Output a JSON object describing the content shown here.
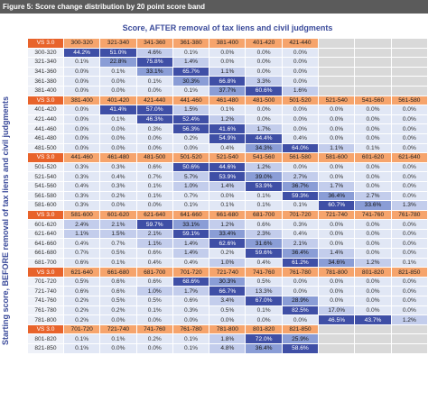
{
  "title": "Figure 5: Score change distribution by 20 point score band",
  "column_heading": "Score, AFTER removal of tax liens and civil judgments",
  "row_heading": "Starting score, BEFORE removal of tax liens and civil judgments",
  "blocks": [
    {
      "header": [
        "VS 3.0",
        "300-320",
        "321-340",
        "341-360",
        "361-380",
        "381-400",
        "401-420",
        "421-440"
      ],
      "rows": [
        {
          "label": "300-320",
          "values": [
            "44.2%",
            "51.0%",
            "4.6%",
            "0.1%",
            "0.0%",
            "0.0%",
            "0.0%"
          ]
        },
        {
          "label": "321-340",
          "values": [
            "0.1%",
            "22.8%",
            "75.8%",
            "1.4%",
            "0.0%",
            "0.0%",
            "0.0%"
          ]
        },
        {
          "label": "341-360",
          "values": [
            "0.0%",
            "0.1%",
            "33.1%",
            "65.7%",
            "1.1%",
            "0.0%",
            "0.0%"
          ]
        },
        {
          "label": "361-380",
          "values": [
            "0.0%",
            "0.0%",
            "0.1%",
            "30.3%",
            "66.8%",
            "3.3%",
            "0.0%"
          ]
        },
        {
          "label": "381-400",
          "values": [
            "0.0%",
            "0.0%",
            "0.0%",
            "0.1%",
            "37.7%",
            "60.6%",
            "1.6%"
          ]
        }
      ]
    },
    {
      "header": [
        "VS 3.0",
        "381-400",
        "401-420",
        "421-440",
        "441-460",
        "461-480",
        "481-500",
        "501-520",
        "521-540",
        "541-560",
        "561-580"
      ],
      "rows": [
        {
          "label": "401-420",
          "values": [
            "0.0%",
            "41.4%",
            "57.0%",
            "1.5%",
            "0.1%",
            "0.0%",
            "0.0%",
            "0.0%",
            "0.0%",
            "0.0%"
          ]
        },
        {
          "label": "421-440",
          "values": [
            "0.0%",
            "0.1%",
            "46.3%",
            "52.4%",
            "1.2%",
            "0.0%",
            "0.0%",
            "0.0%",
            "0.0%",
            "0.0%"
          ]
        },
        {
          "label": "441-460",
          "values": [
            "0.0%",
            "0.0%",
            "0.3%",
            "56.3%",
            "41.6%",
            "1.7%",
            "0.0%",
            "0.0%",
            "0.0%",
            "0.0%"
          ]
        },
        {
          "label": "461-480",
          "values": [
            "0.0%",
            "0.0%",
            "0.0%",
            "0.2%",
            "54.9%",
            "44.4%",
            "0.4%",
            "0.0%",
            "0.0%",
            "0.0%"
          ]
        },
        {
          "label": "481-500",
          "values": [
            "0.0%",
            "0.0%",
            "0.0%",
            "0.0%",
            "0.4%",
            "34.3%",
            "64.0%",
            "1.1%",
            "0.1%",
            "0.0%"
          ]
        }
      ]
    },
    {
      "header": [
        "VS 3.0",
        "441-460",
        "461-480",
        "481-500",
        "501-520",
        "521-540",
        "541-560",
        "561-580",
        "581-600",
        "601-620",
        "621-640"
      ],
      "rows": [
        {
          "label": "501-520",
          "values": [
            "0.3%",
            "0.3%",
            "0.6%",
            "50.6%",
            "44.6%",
            "1.2%",
            "0.0%",
            "0.0%",
            "0.0%",
            "0.0%"
          ]
        },
        {
          "label": "521-540",
          "values": [
            "0.3%",
            "0.4%",
            "0.7%",
            "5.7%",
            "53.9%",
            "39.0%",
            "2.7%",
            "0.0%",
            "0.0%",
            "0.0%"
          ]
        },
        {
          "label": "541-560",
          "values": [
            "0.4%",
            "0.3%",
            "0.1%",
            "1.0%",
            "1.4%",
            "53.9%",
            "36.7%",
            "1.7%",
            "0.0%",
            "0.0%"
          ]
        },
        {
          "label": "561-580",
          "values": [
            "0.3%",
            "0.2%",
            "0.1%",
            "0.7%",
            "0.0%",
            "0.1%",
            "59.3%",
            "36.4%",
            "2.7%",
            "0.0%"
          ]
        },
        {
          "label": "581-600",
          "values": [
            "0.3%",
            "0.0%",
            "0.0%",
            "0.1%",
            "0.1%",
            "0.1%",
            "0.1%",
            "60.7%",
            "33.6%",
            "1.3%"
          ]
        }
      ]
    },
    {
      "header": [
        "VS 3.0",
        "581-600",
        "601-620",
        "621-640",
        "641-660",
        "661-680",
        "681-700",
        "701-720",
        "721-740",
        "741-760",
        "761-780"
      ],
      "rows": [
        {
          "label": "601-620",
          "values": [
            "2.4%",
            "2.1%",
            "59.7%",
            "33.1%",
            "1.2%",
            "0.6%",
            "0.3%",
            "0.0%",
            "0.0%",
            "0.0%"
          ]
        },
        {
          "label": "621-640",
          "values": [
            "1.1%",
            "1.5%",
            "2.1%",
            "59.1%",
            "33.4%",
            "2.3%",
            "0.4%",
            "0.0%",
            "0.0%",
            "0.0%"
          ]
        },
        {
          "label": "641-660",
          "values": [
            "0.4%",
            "0.7%",
            "1.1%",
            "1.4%",
            "62.6%",
            "31.6%",
            "2.1%",
            "0.0%",
            "0.0%",
            "0.0%"
          ]
        },
        {
          "label": "661-680",
          "values": [
            "0.7%",
            "0.5%",
            "0.6%",
            "1.4%",
            "0.2%",
            "59.6%",
            "36.4%",
            "1.4%",
            "0.0%",
            "0.0%"
          ]
        },
        {
          "label": "681-700",
          "values": [
            "0.6%",
            "0.1%",
            "0.4%",
            "0.4%",
            "1.0%",
            "0.4%",
            "61.2%",
            "34.6%",
            "1.2%",
            "0.1%"
          ]
        }
      ]
    },
    {
      "header": [
        "VS 3.0",
        "621-640",
        "661-680",
        "681-700",
        "701-720",
        "721-740",
        "741-760",
        "761-780",
        "781-800",
        "801-820",
        "821-850"
      ],
      "rows": [
        {
          "label": "701-720",
          "values": [
            "0.5%",
            "0.6%",
            "0.6%",
            "68.6%",
            "30.3%",
            "0.5%",
            "0.0%",
            "0.0%",
            "0.0%",
            "0.0%"
          ]
        },
        {
          "label": "721-740",
          "values": [
            "0.6%",
            "0.6%",
            "1.0%",
            "1.7%",
            "66.7%",
            "13.3%",
            "0.0%",
            "0.0%",
            "0.0%",
            "0.0%"
          ]
        },
        {
          "label": "741-760",
          "values": [
            "0.2%",
            "0.5%",
            "0.5%",
            "0.6%",
            "3.4%",
            "67.0%",
            "28.9%",
            "0.0%",
            "0.0%",
            "0.0%"
          ]
        },
        {
          "label": "761-780",
          "values": [
            "0.2%",
            "0.2%",
            "0.1%",
            "0.3%",
            "0.5%",
            "0.1%",
            "82.5%",
            "17.0%",
            "0.0%",
            "0.0%"
          ]
        },
        {
          "label": "781-800",
          "values": [
            "0.2%",
            "0.0%",
            "0.0%",
            "0.0%",
            "0.0%",
            "0.0%",
            "0.0%",
            "46.5%",
            "43.7%",
            "1.2%"
          ]
        }
      ]
    },
    {
      "header": [
        "VS 3.0",
        "701-720",
        "721-740",
        "741-760",
        "761-780",
        "781-800",
        "801-820",
        "821-850"
      ],
      "rows": [
        {
          "label": "801-820",
          "values": [
            "0.1%",
            "0.1%",
            "0.2%",
            "0.1%",
            "1.8%",
            "72.0%",
            "25.9%"
          ]
        },
        {
          "label": "821-850",
          "values": [
            "0.1%",
            "0.0%",
            "0.0%",
            "0.1%",
            "4.8%",
            "36.4%",
            "58.6%"
          ]
        }
      ]
    }
  ]
}
